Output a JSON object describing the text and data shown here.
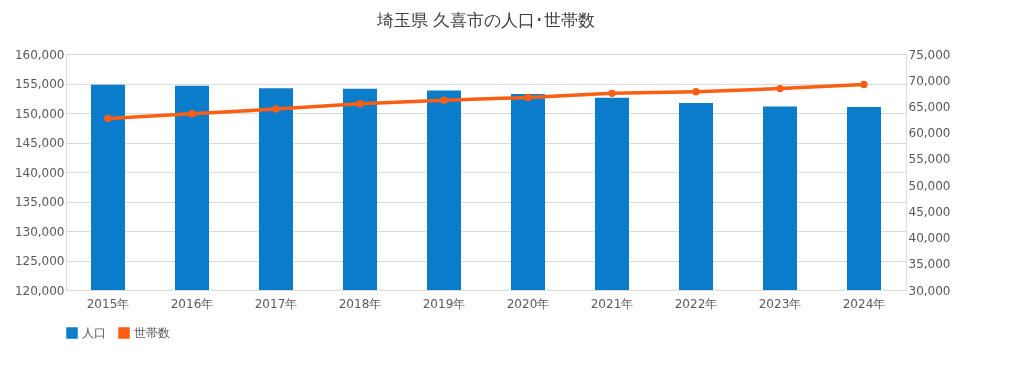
{
  "chart_data": {
    "type": "bar",
    "title": "埼玉県 久喜市の人口･世帯数",
    "categories": [
      "2015年",
      "2016年",
      "2017年",
      "2018年",
      "2019年",
      "2020年",
      "2021年",
      "2022年",
      "2023年",
      "2024年"
    ],
    "series": [
      {
        "name": "人口",
        "color": "#0b7dcb",
        "values": [
          154800,
          154600,
          154200,
          154100,
          153800,
          153200,
          152600,
          151700,
          151100,
          151000
        ]
      },
      {
        "name": "世帯数",
        "type": "line",
        "axis": "y2",
        "color": "#fc5e14",
        "values": [
          62700,
          63600,
          64500,
          65500,
          66200,
          66700,
          67500,
          67800,
          68400,
          69200
        ]
      }
    ],
    "ylim": [
      120000,
      160000
    ],
    "yticks": [
      {
        "value": 120000,
        "label": "120,000"
      },
      {
        "value": 125000,
        "label": "125,000"
      },
      {
        "value": 130000,
        "label": "130,000"
      },
      {
        "value": 135000,
        "label": "135,000"
      },
      {
        "value": 140000,
        "label": "140,000"
      },
      {
        "value": 145000,
        "label": "145,000"
      },
      {
        "value": 150000,
        "label": "150,000"
      },
      {
        "value": 155000,
        "label": "155,000"
      },
      {
        "value": 160000,
        "label": "160,000"
      }
    ],
    "y2lim": [
      30000,
      75000
    ],
    "y2ticks": [
      {
        "value": 30000,
        "label": "30,000"
      },
      {
        "value": 35000,
        "label": "35,000"
      },
      {
        "value": 40000,
        "label": "40,000"
      },
      {
        "value": 45000,
        "label": "45,000"
      },
      {
        "value": 50000,
        "label": "50,000"
      },
      {
        "value": 55000,
        "label": "55,000"
      },
      {
        "value": 60000,
        "label": "60,000"
      },
      {
        "value": 65000,
        "label": "65,000"
      },
      {
        "value": 70000,
        "label": "70,000"
      },
      {
        "value": 75000,
        "label": "75,000"
      }
    ],
    "grid": "y",
    "legend": "bottom",
    "marker": "circle",
    "line_style": "solid"
  }
}
